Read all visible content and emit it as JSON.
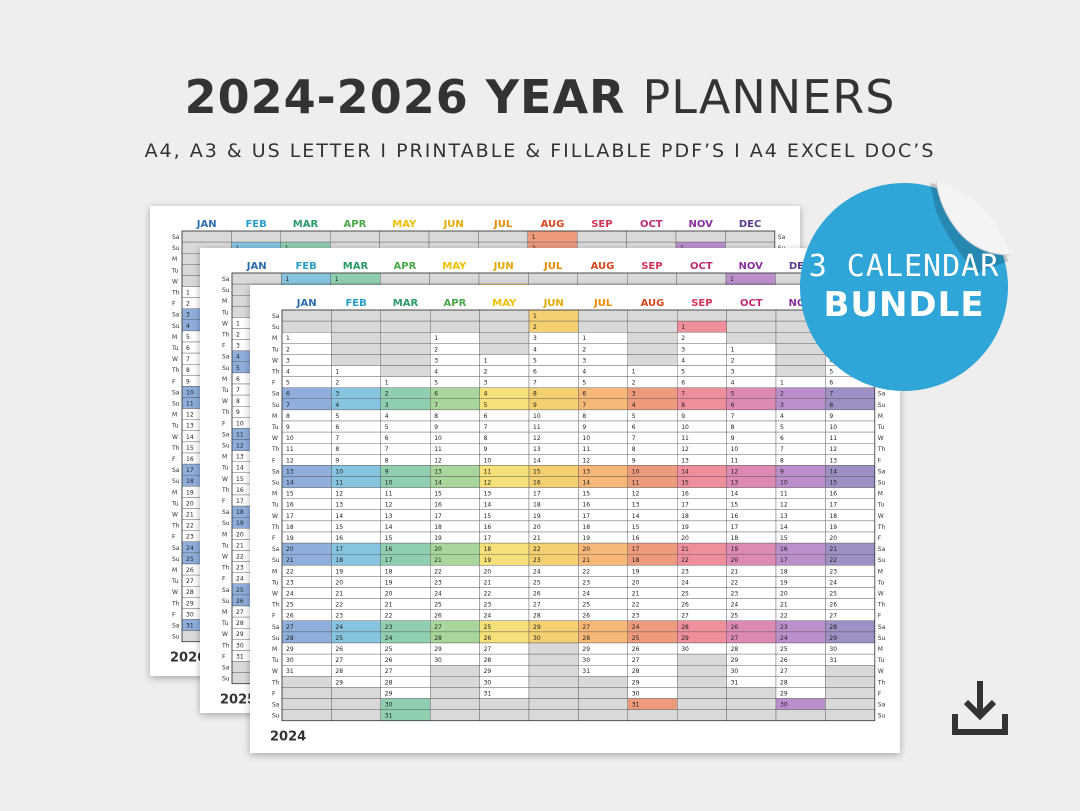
{
  "header": {
    "title_bold": "2024-2026 YEAR",
    "title_light": "PLANNERS",
    "subtitle": "A4, A3 & US LETTER  I  PRINTABLE & FILLABLE PDF’S  I  A4 EXCEL DOC’S"
  },
  "badge": {
    "line1": "3 CALENDAR",
    "line2": "BUNDLE",
    "color": "#2fa5d8"
  },
  "download_icon": "download-icon",
  "months": [
    "JAN",
    "FEB",
    "MAR",
    "APR",
    "MAY",
    "JUN",
    "JUL",
    "AUG",
    "SEP",
    "OCT",
    "NOV",
    "DEC"
  ],
  "month_colors": [
    "#2b6cb0",
    "#2aa0c8",
    "#2b9a6a",
    "#4aa84a",
    "#f0c000",
    "#e6a800",
    "#e88a00",
    "#d9461c",
    "#d6335a",
    "#c02a74",
    "#8a2f9a",
    "#5a3c8c"
  ],
  "weekend_colors": [
    "#8faedc",
    "#86c4e0",
    "#8fcfb0",
    "#a9d69a",
    "#f5e07a",
    "#f5d070",
    "#f6b777",
    "#ee9a7c",
    "#ef8f9c",
    "#dd89b4",
    "#bb8fcc",
    "#9e8fc4"
  ],
  "weekday_labels": [
    "Sa",
    "Su",
    "M",
    "Tu",
    "W",
    "Th",
    "F"
  ],
  "planners": [
    {
      "year": "2026"
    },
    {
      "year": "2025"
    },
    {
      "year": "2024"
    }
  ]
}
